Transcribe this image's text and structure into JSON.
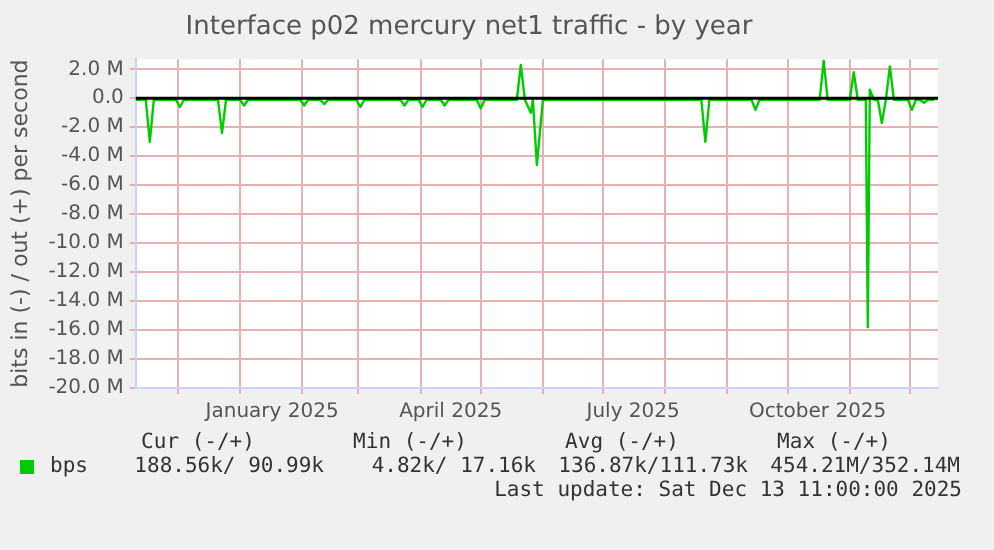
{
  "chart_data": {
    "type": "line",
    "title": "Interface p02 mercury net1 traffic - by year",
    "ylabel": "bits in (-) / out (+) per second",
    "xlim": [
      "2024-11-10",
      "2025-12-15"
    ],
    "xticks": [
      {
        "value": "2024-12-01",
        "label": null
      },
      {
        "value": "2025-01-01",
        "label": null
      },
      {
        "value": "2025-01-17",
        "label": "January 2025"
      },
      {
        "value": "2025-02-01",
        "label": null
      },
      {
        "value": "2025-03-01",
        "label": null
      },
      {
        "value": "2025-04-01",
        "label": null
      },
      {
        "value": "2025-04-16",
        "label": "April 2025"
      },
      {
        "value": "2025-05-01",
        "label": null
      },
      {
        "value": "2025-06-01",
        "label": null
      },
      {
        "value": "2025-07-01",
        "label": null
      },
      {
        "value": "2025-07-16",
        "label": "July 2025"
      },
      {
        "value": "2025-08-01",
        "label": null
      },
      {
        "value": "2025-09-01",
        "label": null
      },
      {
        "value": "2025-10-01",
        "label": null
      },
      {
        "value": "2025-10-16",
        "label": "October 2025"
      },
      {
        "value": "2025-11-01",
        "label": null
      },
      {
        "value": "2025-12-01",
        "label": null
      }
    ],
    "ylim": [
      -20000000,
      2700000
    ],
    "yticks": [
      {
        "value": 2000000,
        "label": "2.0 M"
      },
      {
        "value": 0,
        "label": "0.0"
      },
      {
        "value": -2000000,
        "label": "-2.0 M"
      },
      {
        "value": -4000000,
        "label": "-4.0 M"
      },
      {
        "value": -6000000,
        "label": "-6.0 M"
      },
      {
        "value": -8000000,
        "label": "-8.0 M"
      },
      {
        "value": -10000000,
        "label": "-10.0 M"
      },
      {
        "value": -12000000,
        "label": "-12.0 M"
      },
      {
        "value": -14000000,
        "label": "-14.0 M"
      },
      {
        "value": -16000000,
        "label": "-16.0 M"
      },
      {
        "value": -18000000,
        "label": "-18.0 M"
      },
      {
        "value": -20000000,
        "label": "-20.0 M"
      }
    ],
    "grid": true,
    "legend": "bottom left",
    "ref_lines": [
      {
        "axis": "y",
        "value": 0,
        "color": "#000000"
      }
    ],
    "x": [
      "2024-11-10",
      "2024-11-15",
      "2024-11-17",
      "2024-11-19",
      "2024-11-30",
      "2024-12-02",
      "2024-12-04",
      "2024-12-21",
      "2024-12-23",
      "2024-12-25",
      "2025-01-01",
      "2025-01-03",
      "2025-01-05",
      "2025-01-31",
      "2025-02-02",
      "2025-02-04",
      "2025-02-10",
      "2025-02-12",
      "2025-02-14",
      "2025-02-28",
      "2025-03-02",
      "2025-03-04",
      "2025-03-22",
      "2025-03-24",
      "2025-03-26",
      "2025-03-31",
      "2025-04-02",
      "2025-04-04",
      "2025-04-11",
      "2025-04-13",
      "2025-04-15",
      "2025-04-29",
      "2025-05-01",
      "2025-05-03",
      "2025-05-19",
      "2025-05-21",
      "2025-05-23",
      "2025-05-26",
      "2025-05-27",
      "2025-05-29",
      "2025-06-01",
      "2025-08-19",
      "2025-08-21",
      "2025-08-23",
      "2025-09-13",
      "2025-09-15",
      "2025-09-17",
      "2025-10-17",
      "2025-10-19",
      "2025-10-21",
      "2025-11-01",
      "2025-11-03",
      "2025-11-05",
      "2025-11-09",
      "2025-11-10",
      "2025-11-11",
      "2025-11-13",
      "2025-11-15",
      "2025-11-17",
      "2025-11-19",
      "2025-11-21",
      "2025-11-23",
      "2025-11-30",
      "2025-12-02",
      "2025-12-04",
      "2025-12-06",
      "2025-12-08",
      "2025-12-10",
      "2025-12-13"
    ],
    "series": [
      {
        "name": "bps",
        "color": "#00cc00",
        "values": [
          -100000,
          -100000,
          -3000000,
          -100000,
          -100000,
          -600000,
          -100000,
          -100000,
          -2400000,
          -100000,
          -100000,
          -500000,
          -100000,
          -100000,
          -500000,
          -100000,
          -100000,
          -400000,
          -100000,
          -100000,
          -600000,
          -100000,
          -100000,
          -500000,
          -100000,
          -100000,
          -600000,
          -100000,
          -100000,
          -500000,
          -100000,
          -100000,
          -700000,
          -100000,
          -100000,
          2300000,
          -100000,
          -1000000,
          -100000,
          -4600000,
          -100000,
          -100000,
          -3000000,
          -100000,
          -100000,
          -800000,
          -100000,
          -100000,
          2600000,
          -100000,
          -100000,
          1800000,
          -100000,
          -100000,
          -15800000,
          600000,
          -100000,
          -100000,
          -1700000,
          -100000,
          2200000,
          -100000,
          -100000,
          -800000,
          -100000,
          -100000,
          -300000,
          -100000,
          -100000
        ]
      }
    ],
    "annotations": [
      "Cur (-/+)",
      "Min (-/+)",
      "Avg (-/+)",
      "Max (-/+)",
      "188.56k/ 90.99k",
      "4.82k/ 17.16k",
      "136.87k/111.73k",
      "454.21M/352.14M",
      "Last update: Sat Dec 13 11:00:00 2025"
    ]
  }
}
